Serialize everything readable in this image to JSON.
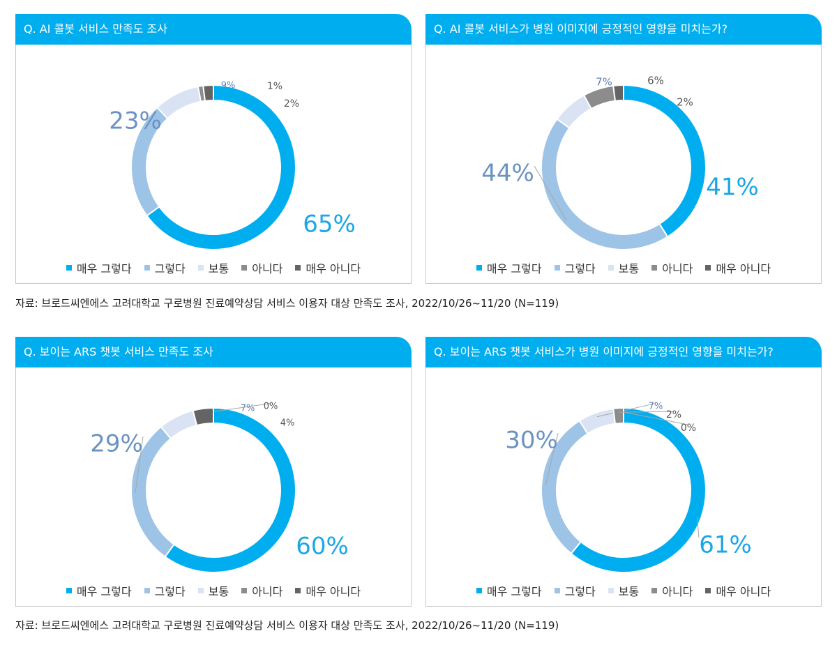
{
  "colors": {
    "header_bg": "#00AEEF",
    "category_colors": [
      "#00AEEF",
      "#9DC3E6",
      "#DAE3F3",
      "#8C8C8C",
      "#646464"
    ]
  },
  "legend_labels": [
    "매우 그렇다",
    "그렇다",
    "보통",
    "아니다",
    "매우 아니다"
  ],
  "sources": [
    "자료: 브로드씨엔에스 고려대학교 구로병원 진료예약상담 서비스 이용자 대상 만족도 조사, 2022/10/26~11/20 (N=119)",
    "자료: 브로드씨엔에스 고려대학교 구로병원 진료예약상담 서비스 이용자 대상 만족도 조사, 2022/10/26~11/20 (N=119)"
  ],
  "chart_data": [
    {
      "type": "pie",
      "title": "Q. AI 콜봇 서비스 만족도 조사",
      "categories": [
        "매우 그렇다",
        "그렇다",
        "보통",
        "아니다",
        "매우 아니다"
      ],
      "values": [
        65,
        23,
        9,
        1,
        2
      ],
      "labels": [
        "65%",
        "23%",
        "9%",
        "1%",
        "2%"
      ],
      "donut": true,
      "legend": "bottom"
    },
    {
      "type": "pie",
      "title": "Q. AI 콜봇 서비스가 병원 이미지에 긍정적인 영향을 미치는가?",
      "categories": [
        "매우 그렇다",
        "그렇다",
        "보통",
        "아니다",
        "매우 아니다"
      ],
      "values": [
        41,
        44,
        7,
        6,
        2
      ],
      "labels": [
        "41%",
        "44%",
        "7%",
        "6%",
        "2%"
      ],
      "donut": true,
      "legend": "bottom"
    },
    {
      "type": "pie",
      "title": "Q. 보이는 ARS 챗봇 서비스 만족도 조사",
      "categories": [
        "매우 그렇다",
        "그렇다",
        "보통",
        "아니다",
        "매우 아니다"
      ],
      "values": [
        60,
        29,
        7,
        0,
        4
      ],
      "labels": [
        "60%",
        "29%",
        "7%",
        "0%",
        "4%"
      ],
      "donut": true,
      "legend": "bottom"
    },
    {
      "type": "pie",
      "title": "Q. 보이는 ARS 챗봇 서비스가 병원 이미지에 긍정적인 영향을 미치는가?",
      "categories": [
        "매우 그렇다",
        "그렇다",
        "보통",
        "아니다",
        "매우 아니다"
      ],
      "values": [
        61,
        30,
        7,
        2,
        0
      ],
      "labels": [
        "61%",
        "30%",
        "7%",
        "2%",
        "0%"
      ],
      "donut": true,
      "legend": "bottom"
    }
  ]
}
